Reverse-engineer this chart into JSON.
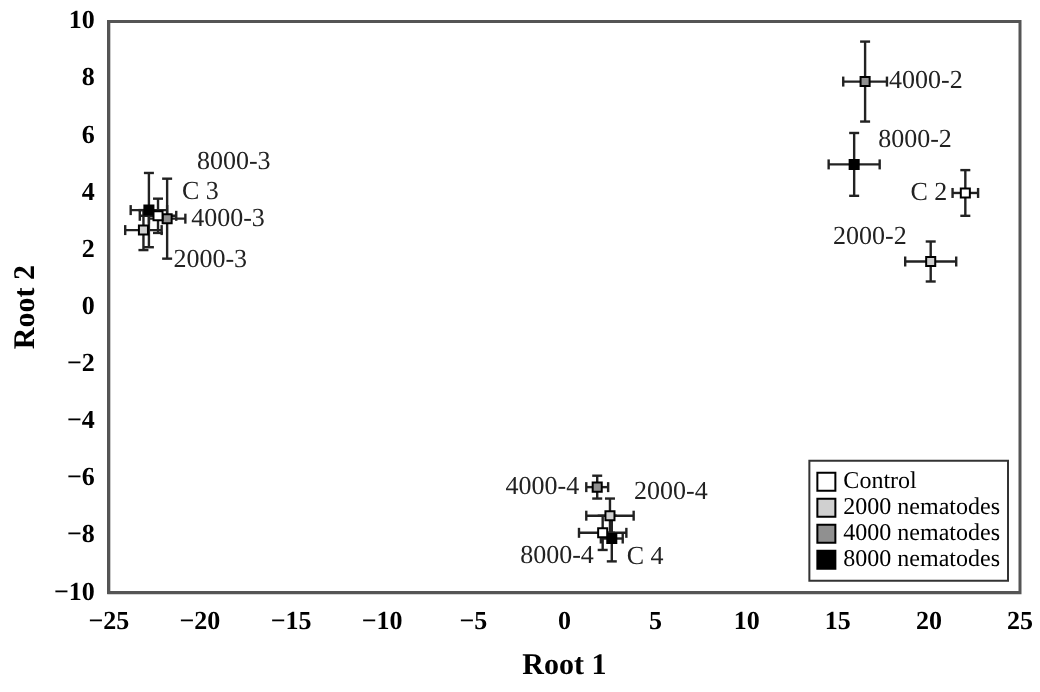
{
  "chart_data": {
    "type": "scatter",
    "xlabel": "Root 1",
    "ylabel": "Root 2",
    "xlim": [
      -25,
      25
    ],
    "xticks": [
      -25,
      -20,
      -15,
      -10,
      -5,
      0,
      5,
      10,
      15,
      20,
      25
    ],
    "ylim": [
      -10,
      10
    ],
    "yticks": [
      -10,
      -8,
      -6,
      -4,
      -2,
      0,
      2,
      4,
      6,
      8,
      10
    ],
    "grid": false,
    "legend": "bottom right",
    "marker": "square",
    "series": [
      {
        "name": "Control",
        "color": "#ffffff",
        "x": [
          22.0,
          -22.3,
          2.1
        ],
        "values": [
          4.0,
          3.2,
          -7.9
        ],
        "errors": [
          0.8,
          0.6,
          0.6
        ],
        "xerrors": [
          0.7,
          1.0,
          1.3
        ]
      },
      {
        "name": "2000 nematodes",
        "color": "#d0d0d0",
        "x": [
          20.1,
          -23.1,
          2.5
        ],
        "values": [
          1.6,
          2.7,
          -7.3
        ],
        "errors": [
          0.7,
          0.7,
          0.6
        ],
        "xerrors": [
          1.4,
          1.0,
          1.3
        ]
      },
      {
        "name": "4000 nematodes",
        "color": "#909090",
        "x": [
          16.5,
          -21.8,
          1.8
        ],
        "values": [
          7.9,
          3.1,
          -6.3
        ],
        "errors": [
          1.4,
          1.4,
          0.4
        ],
        "xerrors": [
          1.2,
          1.0,
          0.6
        ]
      },
      {
        "name": "8000 nematodes",
        "color": "#000000",
        "x": [
          15.9,
          -22.8,
          2.6
        ],
        "values": [
          5.0,
          3.4,
          -8.1
        ],
        "errors": [
          1.1,
          1.3,
          0.8
        ],
        "xerrors": [
          1.4,
          1.0,
          0.6
        ]
      }
    ],
    "annotations": [
      {
        "text": "C 2",
        "x": 22.0,
        "y": 4.0
      },
      {
        "text": "C 3",
        "x": -22.3,
        "y": 3.2
      },
      {
        "text": "C 4",
        "x": 2.1,
        "y": -7.9
      },
      {
        "text": "2000-2",
        "x": 20.1,
        "y": 1.6
      },
      {
        "text": "2000-3",
        "x": -23.1,
        "y": 2.7
      },
      {
        "text": "2000-4",
        "x": 2.5,
        "y": -7.3
      },
      {
        "text": "4000-2",
        "x": 16.5,
        "y": 7.9
      },
      {
        "text": "4000-3",
        "x": -21.8,
        "y": 3.1
      },
      {
        "text": "4000-4",
        "x": 1.8,
        "y": -6.3
      },
      {
        "text": "8000-2",
        "x": 15.9,
        "y": 5.0
      },
      {
        "text": "8000-3",
        "x": -22.8,
        "y": 3.4
      },
      {
        "text": "8000-4",
        "x": 2.6,
        "y": -8.1
      }
    ]
  }
}
